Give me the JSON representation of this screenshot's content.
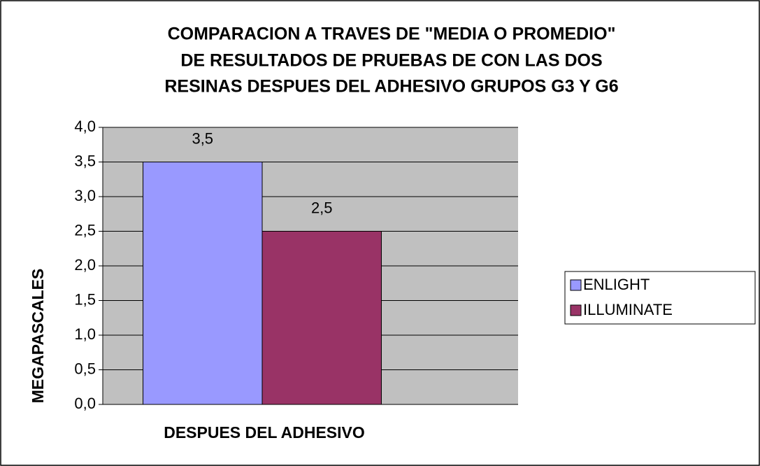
{
  "chart_data": {
    "type": "bar",
    "title": [
      "COMPARACION A TRAVES DE \"MEDIA O PROMEDIO\"",
      "DE RESULTADOS DE PRUEBAS DE CON LAS DOS",
      "RESINAS DESPUES DEL ADHESIVO GRUPOS G3 Y G6"
    ],
    "y_label": "MEGAPASCALES",
    "categories": [
      "DESPUES DEL ADHESIVO"
    ],
    "series": [
      {
        "name": "ENLIGHT",
        "color": "#9999ff",
        "values": [
          3.5
        ],
        "value_labels": [
          "3,5"
        ]
      },
      {
        "name": "ILLUMINATE",
        "color": "#993366",
        "values": [
          2.5
        ],
        "value_labels": [
          "2,5"
        ]
      }
    ],
    "ylim": [
      0,
      4
    ],
    "yticks": [
      {
        "value": 0,
        "label": "0,0"
      },
      {
        "value": 0.5,
        "label": "0,5"
      },
      {
        "value": 1,
        "label": "1,0"
      },
      {
        "value": 1.5,
        "label": "1,5"
      },
      {
        "value": 2,
        "label": "2,0"
      },
      {
        "value": 2.5,
        "label": "2,5"
      },
      {
        "value": 3,
        "label": "3,0"
      },
      {
        "value": 3.5,
        "label": "3,5"
      },
      {
        "value": 4,
        "label": "4,0"
      }
    ],
    "grid": true,
    "legend": "right"
  }
}
